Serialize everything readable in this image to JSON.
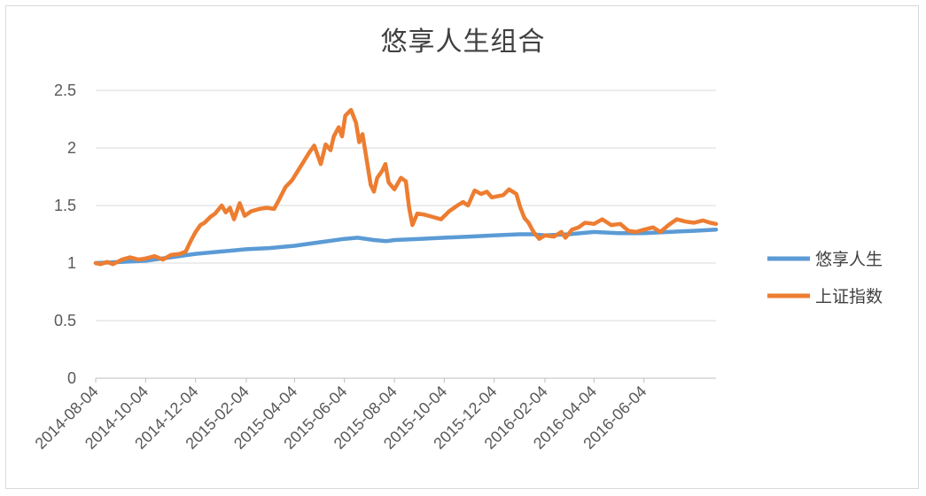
{
  "chart_data": {
    "type": "line",
    "title": "悠享人生组合",
    "xlabel": "",
    "ylabel": "",
    "ylim": [
      0,
      2.5
    ],
    "y_ticks": [
      "0",
      "0.5",
      "1",
      "1.5",
      "2",
      "2.5"
    ],
    "x_tick_labels": [
      "2014-08-04",
      "2014-10-04",
      "2014-12-04",
      "2015-02-04",
      "2015-04-04",
      "2015-06-04",
      "2015-08-04",
      "2015-10-04",
      "2015-12-04",
      "2016-02-04",
      "2016-04-04",
      "2016-06-04"
    ],
    "x_range": [
      "2014-08-04",
      "2016-08-31"
    ],
    "grid": "horizontal",
    "legend": "right",
    "series": [
      {
        "name": "悠享人生",
        "color": "#5B9BD5",
        "points": [
          [
            "2014-08-04",
            1.0
          ],
          [
            "2014-09-04",
            1.01
          ],
          [
            "2014-10-04",
            1.02
          ],
          [
            "2014-11-04",
            1.05
          ],
          [
            "2014-12-04",
            1.08
          ],
          [
            "2015-01-04",
            1.1
          ],
          [
            "2015-02-04",
            1.12
          ],
          [
            "2015-03-04",
            1.13
          ],
          [
            "2015-04-04",
            1.15
          ],
          [
            "2015-05-04",
            1.18
          ],
          [
            "2015-06-04",
            1.21
          ],
          [
            "2015-06-20",
            1.22
          ],
          [
            "2015-07-10",
            1.2
          ],
          [
            "2015-07-25",
            1.19
          ],
          [
            "2015-08-04",
            1.2
          ],
          [
            "2015-09-04",
            1.21
          ],
          [
            "2015-10-04",
            1.22
          ],
          [
            "2015-11-04",
            1.23
          ],
          [
            "2015-12-04",
            1.24
          ],
          [
            "2016-01-04",
            1.25
          ],
          [
            "2016-01-20",
            1.25
          ],
          [
            "2016-02-04",
            1.24
          ],
          [
            "2016-03-04",
            1.25
          ],
          [
            "2016-04-04",
            1.27
          ],
          [
            "2016-05-04",
            1.26
          ],
          [
            "2016-06-04",
            1.26
          ],
          [
            "2016-07-04",
            1.27
          ],
          [
            "2016-08-04",
            1.28
          ],
          [
            "2016-08-31",
            1.29
          ]
        ]
      },
      {
        "name": "上证指数",
        "color": "#ED7D31",
        "points": [
          [
            "2014-08-04",
            1.0
          ],
          [
            "2014-08-10",
            0.99
          ],
          [
            "2014-08-18",
            1.01
          ],
          [
            "2014-08-25",
            0.99
          ],
          [
            "2014-09-05",
            1.03
          ],
          [
            "2014-09-15",
            1.05
          ],
          [
            "2014-09-25",
            1.03
          ],
          [
            "2014-10-04",
            1.04
          ],
          [
            "2014-10-15",
            1.06
          ],
          [
            "2014-10-25",
            1.03
          ],
          [
            "2014-11-04",
            1.07
          ],
          [
            "2014-11-15",
            1.08
          ],
          [
            "2014-11-22",
            1.1
          ],
          [
            "2014-11-28",
            1.19
          ],
          [
            "2014-12-04",
            1.27
          ],
          [
            "2014-12-10",
            1.33
          ],
          [
            "2014-12-15",
            1.35
          ],
          [
            "2014-12-22",
            1.4
          ],
          [
            "2014-12-28",
            1.43
          ],
          [
            "2015-01-05",
            1.5
          ],
          [
            "2015-01-10",
            1.44
          ],
          [
            "2015-01-15",
            1.48
          ],
          [
            "2015-01-20",
            1.38
          ],
          [
            "2015-01-27",
            1.52
          ],
          [
            "2015-02-02",
            1.41
          ],
          [
            "2015-02-10",
            1.45
          ],
          [
            "2015-02-20",
            1.47
          ],
          [
            "2015-03-01",
            1.48
          ],
          [
            "2015-03-10",
            1.47
          ],
          [
            "2015-03-16",
            1.55
          ],
          [
            "2015-03-24",
            1.66
          ],
          [
            "2015-04-01",
            1.72
          ],
          [
            "2015-04-08",
            1.8
          ],
          [
            "2015-04-15",
            1.88
          ],
          [
            "2015-04-22",
            1.96
          ],
          [
            "2015-04-28",
            2.02
          ],
          [
            "2015-05-06",
            1.86
          ],
          [
            "2015-05-12",
            2.03
          ],
          [
            "2015-05-18",
            1.98
          ],
          [
            "2015-05-22",
            2.1
          ],
          [
            "2015-05-28",
            2.18
          ],
          [
            "2015-06-01",
            2.1
          ],
          [
            "2015-06-05",
            2.28
          ],
          [
            "2015-06-12",
            2.33
          ],
          [
            "2015-06-18",
            2.22
          ],
          [
            "2015-06-22",
            2.05
          ],
          [
            "2015-06-26",
            2.12
          ],
          [
            "2015-06-30",
            1.95
          ],
          [
            "2015-07-06",
            1.68
          ],
          [
            "2015-07-10",
            1.62
          ],
          [
            "2015-07-14",
            1.74
          ],
          [
            "2015-07-20",
            1.8
          ],
          [
            "2015-07-24",
            1.86
          ],
          [
            "2015-07-28",
            1.7
          ],
          [
            "2015-08-04",
            1.64
          ],
          [
            "2015-08-12",
            1.74
          ],
          [
            "2015-08-18",
            1.71
          ],
          [
            "2015-08-22",
            1.48
          ],
          [
            "2015-08-26",
            1.33
          ],
          [
            "2015-09-01",
            1.43
          ],
          [
            "2015-09-10",
            1.42
          ],
          [
            "2015-09-20",
            1.4
          ],
          [
            "2015-09-30",
            1.38
          ],
          [
            "2015-10-10",
            1.45
          ],
          [
            "2015-10-20",
            1.5
          ],
          [
            "2015-10-27",
            1.53
          ],
          [
            "2015-11-02",
            1.5
          ],
          [
            "2015-11-10",
            1.63
          ],
          [
            "2015-11-18",
            1.6
          ],
          [
            "2015-11-25",
            1.62
          ],
          [
            "2015-12-01",
            1.57
          ],
          [
            "2015-12-08",
            1.58
          ],
          [
            "2015-12-15",
            1.59
          ],
          [
            "2015-12-22",
            1.64
          ],
          [
            "2015-12-31",
            1.6
          ],
          [
            "2016-01-05",
            1.48
          ],
          [
            "2016-01-10",
            1.39
          ],
          [
            "2016-01-15",
            1.35
          ],
          [
            "2016-01-21",
            1.27
          ],
          [
            "2016-01-28",
            1.21
          ],
          [
            "2016-02-04",
            1.24
          ],
          [
            "2016-02-15",
            1.23
          ],
          [
            "2016-02-24",
            1.27
          ],
          [
            "2016-02-29",
            1.22
          ],
          [
            "2016-03-08",
            1.29
          ],
          [
            "2016-03-16",
            1.31
          ],
          [
            "2016-03-24",
            1.35
          ],
          [
            "2016-04-04",
            1.34
          ],
          [
            "2016-04-14",
            1.38
          ],
          [
            "2016-04-25",
            1.33
          ],
          [
            "2016-05-06",
            1.34
          ],
          [
            "2016-05-16",
            1.28
          ],
          [
            "2016-05-25",
            1.27
          ],
          [
            "2016-06-04",
            1.29
          ],
          [
            "2016-06-15",
            1.31
          ],
          [
            "2016-06-24",
            1.27
          ],
          [
            "2016-07-04",
            1.33
          ],
          [
            "2016-07-14",
            1.38
          ],
          [
            "2016-07-25",
            1.36
          ],
          [
            "2016-08-04",
            1.35
          ],
          [
            "2016-08-15",
            1.37
          ],
          [
            "2016-08-24",
            1.35
          ],
          [
            "2016-08-31",
            1.34
          ]
        ]
      }
    ]
  }
}
